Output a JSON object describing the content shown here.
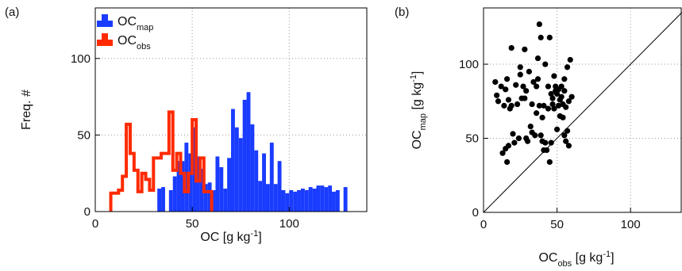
{
  "chart_data": [
    {
      "type": "bar",
      "panel_label": "(a)",
      "xlabel": "OC [g kg",
      "xlabel_sup": "-1",
      "xlabel_tail": "]",
      "ylabel": "Freq. #",
      "xlim": [
        0,
        140
      ],
      "ylim": [
        0,
        133
      ],
      "xticks": [
        0,
        50,
        100
      ],
      "yticks": [
        0,
        50,
        100
      ],
      "grid": true,
      "legend_position": "top-left",
      "series": [
        {
          "name": "OC",
          "name_sub": "map",
          "color": "#1a3cff",
          "bin_edges": [
            32,
            34,
            36,
            38,
            40,
            42,
            44,
            46,
            48,
            50,
            52,
            54,
            56,
            58,
            60,
            62,
            64,
            66,
            68,
            70,
            72,
            74,
            76,
            78,
            80,
            82,
            84,
            86,
            88,
            90,
            92,
            94,
            96,
            98,
            100,
            102,
            104,
            106,
            108,
            110,
            112,
            114,
            116,
            118,
            120,
            122,
            124,
            126,
            128,
            130
          ],
          "counts": [
            15,
            16,
            0,
            14,
            23,
            33,
            33,
            45,
            38,
            55,
            36,
            28,
            18,
            19,
            14,
            36,
            29,
            15,
            35,
            67,
            55,
            48,
            73,
            78,
            57,
            40,
            20,
            38,
            18,
            45,
            18,
            33,
            14,
            12,
            14,
            13,
            14,
            15,
            14,
            16,
            15,
            17,
            17,
            16,
            17,
            13,
            14,
            0,
            16
          ]
        },
        {
          "name": "OC",
          "name_sub": "obs",
          "color": "#ff2a00",
          "bin_edges": [
            8,
            10,
            12,
            14,
            16,
            18,
            20,
            22,
            24,
            26,
            28,
            30,
            32,
            34,
            36,
            38,
            40,
            42,
            44,
            46,
            48,
            50,
            52,
            54,
            56,
            58,
            60
          ],
          "counts": [
            12,
            12,
            14,
            23,
            57,
            38,
            27,
            13,
            25,
            21,
            14,
            35,
            35,
            38,
            38,
            65,
            27,
            38,
            25,
            13,
            25,
            60,
            20,
            35,
            13,
            13
          ]
        }
      ]
    },
    {
      "type": "scatter",
      "panel_label": "(b)",
      "xlabel": "OC",
      "xlabel_sub": "obs",
      "xlabel_tail": " [g kg",
      "xlabel_sup": "-1",
      "xlabel_end": "]",
      "ylabel": "OC",
      "ylabel_sub": "map",
      "ylabel_tail": " [g kg",
      "ylabel_sup": "-1",
      "ylabel_end": "]",
      "xlim": [
        0,
        135
      ],
      "ylim": [
        0,
        138
      ],
      "xticks": [
        0,
        50,
        100
      ],
      "yticks": [
        0,
        50,
        100
      ],
      "grid": true,
      "one_to_one_line": true,
      "color": "#000000",
      "points": [
        [
          8,
          88
        ],
        [
          9,
          79
        ],
        [
          10,
          75
        ],
        [
          12,
          85
        ],
        [
          13,
          40
        ],
        [
          14,
          72
        ],
        [
          15,
          43
        ],
        [
          15,
          83
        ],
        [
          16,
          90
        ],
        [
          16,
          34
        ],
        [
          17,
          76
        ],
        [
          17,
          45
        ],
        [
          18,
          70
        ],
        [
          19,
          111
        ],
        [
          19,
          72
        ],
        [
          20,
          53
        ],
        [
          21,
          47
        ],
        [
          22,
          86
        ],
        [
          23,
          73
        ],
        [
          24,
          50
        ],
        [
          25,
          93
        ],
        [
          25,
          98
        ],
        [
          26,
          77
        ],
        [
          27,
          85
        ],
        [
          28,
          110
        ],
        [
          28,
          77
        ],
        [
          29,
          82
        ],
        [
          29,
          50
        ],
        [
          30,
          48
        ],
        [
          31,
          95
        ],
        [
          32,
          58
        ],
        [
          33,
          73
        ],
        [
          33,
          54
        ],
        [
          34,
          88
        ],
        [
          35,
          52
        ],
        [
          36,
          67
        ],
        [
          36,
          85
        ],
        [
          37,
          104
        ],
        [
          37,
          90
        ],
        [
          38,
          127
        ],
        [
          38,
          72
        ],
        [
          39,
          118
        ],
        [
          39,
          52
        ],
        [
          40,
          64
        ],
        [
          40,
          48
        ],
        [
          41,
          72
        ],
        [
          41,
          42
        ],
        [
          42,
          47
        ],
        [
          42,
          100
        ],
        [
          43,
          42
        ],
        [
          44,
          85
        ],
        [
          44,
          70
        ],
        [
          45,
          118
        ],
        [
          45,
          34
        ],
        [
          46,
          80
        ],
        [
          46,
          47
        ],
        [
          47,
          77
        ],
        [
          47,
          73
        ],
        [
          48,
          70
        ],
        [
          48,
          92
        ],
        [
          49,
          85
        ],
        [
          49,
          82
        ],
        [
          50,
          80
        ],
        [
          50,
          56
        ],
        [
          51,
          83
        ],
        [
          51,
          72
        ],
        [
          52,
          76
        ],
        [
          52,
          65
        ],
        [
          53,
          85
        ],
        [
          53,
          78
        ],
        [
          54,
          73
        ],
        [
          54,
          64
        ],
        [
          55,
          82
        ],
        [
          55,
          90
        ],
        [
          55,
          52
        ],
        [
          56,
          71
        ],
        [
          56,
          48
        ],
        [
          57,
          98
        ],
        [
          57,
          55
        ],
        [
          58,
          75
        ],
        [
          58,
          45
        ],
        [
          59,
          103
        ],
        [
          60,
          78
        ]
      ]
    }
  ]
}
